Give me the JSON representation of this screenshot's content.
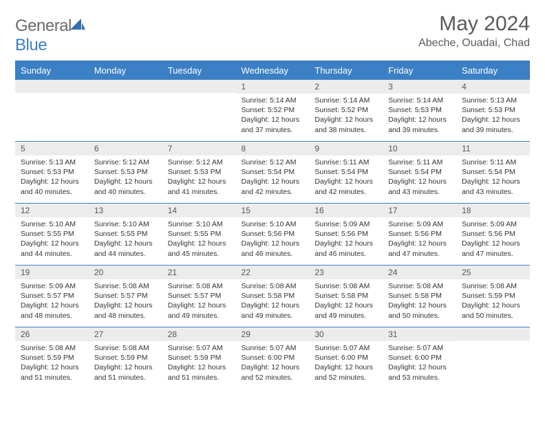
{
  "header": {
    "logo_general": "General",
    "logo_blue": "Blue",
    "month_title": "May 2024",
    "location": "Abeche, Ouadai, Chad"
  },
  "colors": {
    "header_bg": "#3b7fc4",
    "header_text": "#ffffff",
    "daynum_bg": "#ececec",
    "border": "#3b7fc4",
    "logo_gray": "#6b6b6b",
    "logo_blue": "#3b7fc4"
  },
  "weekdays": [
    "Sunday",
    "Monday",
    "Tuesday",
    "Wednesday",
    "Thursday",
    "Friday",
    "Saturday"
  ],
  "weeks": [
    [
      {
        "n": "",
        "sunrise": "",
        "sunset": "",
        "daylight": ""
      },
      {
        "n": "",
        "sunrise": "",
        "sunset": "",
        "daylight": ""
      },
      {
        "n": "",
        "sunrise": "",
        "sunset": "",
        "daylight": ""
      },
      {
        "n": "1",
        "sunrise": "Sunrise: 5:14 AM",
        "sunset": "Sunset: 5:52 PM",
        "daylight": "Daylight: 12 hours and 37 minutes."
      },
      {
        "n": "2",
        "sunrise": "Sunrise: 5:14 AM",
        "sunset": "Sunset: 5:52 PM",
        "daylight": "Daylight: 12 hours and 38 minutes."
      },
      {
        "n": "3",
        "sunrise": "Sunrise: 5:14 AM",
        "sunset": "Sunset: 5:53 PM",
        "daylight": "Daylight: 12 hours and 39 minutes."
      },
      {
        "n": "4",
        "sunrise": "Sunrise: 5:13 AM",
        "sunset": "Sunset: 5:53 PM",
        "daylight": "Daylight: 12 hours and 39 minutes."
      }
    ],
    [
      {
        "n": "5",
        "sunrise": "Sunrise: 5:13 AM",
        "sunset": "Sunset: 5:53 PM",
        "daylight": "Daylight: 12 hours and 40 minutes."
      },
      {
        "n": "6",
        "sunrise": "Sunrise: 5:12 AM",
        "sunset": "Sunset: 5:53 PM",
        "daylight": "Daylight: 12 hours and 40 minutes."
      },
      {
        "n": "7",
        "sunrise": "Sunrise: 5:12 AM",
        "sunset": "Sunset: 5:53 PM",
        "daylight": "Daylight: 12 hours and 41 minutes."
      },
      {
        "n": "8",
        "sunrise": "Sunrise: 5:12 AM",
        "sunset": "Sunset: 5:54 PM",
        "daylight": "Daylight: 12 hours and 42 minutes."
      },
      {
        "n": "9",
        "sunrise": "Sunrise: 5:11 AM",
        "sunset": "Sunset: 5:54 PM",
        "daylight": "Daylight: 12 hours and 42 minutes."
      },
      {
        "n": "10",
        "sunrise": "Sunrise: 5:11 AM",
        "sunset": "Sunset: 5:54 PM",
        "daylight": "Daylight: 12 hours and 43 minutes."
      },
      {
        "n": "11",
        "sunrise": "Sunrise: 5:11 AM",
        "sunset": "Sunset: 5:54 PM",
        "daylight": "Daylight: 12 hours and 43 minutes."
      }
    ],
    [
      {
        "n": "12",
        "sunrise": "Sunrise: 5:10 AM",
        "sunset": "Sunset: 5:55 PM",
        "daylight": "Daylight: 12 hours and 44 minutes."
      },
      {
        "n": "13",
        "sunrise": "Sunrise: 5:10 AM",
        "sunset": "Sunset: 5:55 PM",
        "daylight": "Daylight: 12 hours and 44 minutes."
      },
      {
        "n": "14",
        "sunrise": "Sunrise: 5:10 AM",
        "sunset": "Sunset: 5:55 PM",
        "daylight": "Daylight: 12 hours and 45 minutes."
      },
      {
        "n": "15",
        "sunrise": "Sunrise: 5:10 AM",
        "sunset": "Sunset: 5:56 PM",
        "daylight": "Daylight: 12 hours and 46 minutes."
      },
      {
        "n": "16",
        "sunrise": "Sunrise: 5:09 AM",
        "sunset": "Sunset: 5:56 PM",
        "daylight": "Daylight: 12 hours and 46 minutes."
      },
      {
        "n": "17",
        "sunrise": "Sunrise: 5:09 AM",
        "sunset": "Sunset: 5:56 PM",
        "daylight": "Daylight: 12 hours and 47 minutes."
      },
      {
        "n": "18",
        "sunrise": "Sunrise: 5:09 AM",
        "sunset": "Sunset: 5:56 PM",
        "daylight": "Daylight: 12 hours and 47 minutes."
      }
    ],
    [
      {
        "n": "19",
        "sunrise": "Sunrise: 5:09 AM",
        "sunset": "Sunset: 5:57 PM",
        "daylight": "Daylight: 12 hours and 48 minutes."
      },
      {
        "n": "20",
        "sunrise": "Sunrise: 5:08 AM",
        "sunset": "Sunset: 5:57 PM",
        "daylight": "Daylight: 12 hours and 48 minutes."
      },
      {
        "n": "21",
        "sunrise": "Sunrise: 5:08 AM",
        "sunset": "Sunset: 5:57 PM",
        "daylight": "Daylight: 12 hours and 49 minutes."
      },
      {
        "n": "22",
        "sunrise": "Sunrise: 5:08 AM",
        "sunset": "Sunset: 5:58 PM",
        "daylight": "Daylight: 12 hours and 49 minutes."
      },
      {
        "n": "23",
        "sunrise": "Sunrise: 5:08 AM",
        "sunset": "Sunset: 5:58 PM",
        "daylight": "Daylight: 12 hours and 49 minutes."
      },
      {
        "n": "24",
        "sunrise": "Sunrise: 5:08 AM",
        "sunset": "Sunset: 5:58 PM",
        "daylight": "Daylight: 12 hours and 50 minutes."
      },
      {
        "n": "25",
        "sunrise": "Sunrise: 5:08 AM",
        "sunset": "Sunset: 5:59 PM",
        "daylight": "Daylight: 12 hours and 50 minutes."
      }
    ],
    [
      {
        "n": "26",
        "sunrise": "Sunrise: 5:08 AM",
        "sunset": "Sunset: 5:59 PM",
        "daylight": "Daylight: 12 hours and 51 minutes."
      },
      {
        "n": "27",
        "sunrise": "Sunrise: 5:08 AM",
        "sunset": "Sunset: 5:59 PM",
        "daylight": "Daylight: 12 hours and 51 minutes."
      },
      {
        "n": "28",
        "sunrise": "Sunrise: 5:07 AM",
        "sunset": "Sunset: 5:59 PM",
        "daylight": "Daylight: 12 hours and 51 minutes."
      },
      {
        "n": "29",
        "sunrise": "Sunrise: 5:07 AM",
        "sunset": "Sunset: 6:00 PM",
        "daylight": "Daylight: 12 hours and 52 minutes."
      },
      {
        "n": "30",
        "sunrise": "Sunrise: 5:07 AM",
        "sunset": "Sunset: 6:00 PM",
        "daylight": "Daylight: 12 hours and 52 minutes."
      },
      {
        "n": "31",
        "sunrise": "Sunrise: 5:07 AM",
        "sunset": "Sunset: 6:00 PM",
        "daylight": "Daylight: 12 hours and 53 minutes."
      },
      {
        "n": "",
        "sunrise": "",
        "sunset": "",
        "daylight": ""
      }
    ]
  ]
}
